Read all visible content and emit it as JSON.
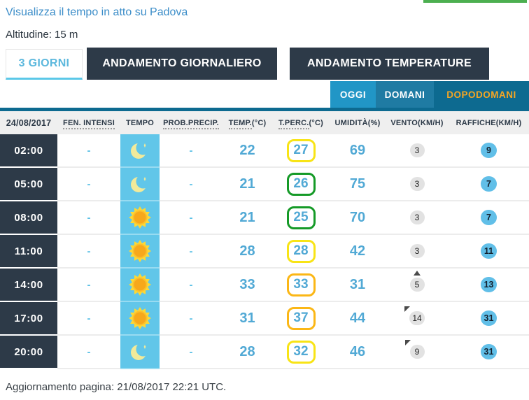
{
  "page": {
    "link_label": "Visualizza il tempo in atto su Padova",
    "altitude_label": "Altitudine: 15 m",
    "update_label": "Aggiornamento pagina: 21/08/2017 22:21 UTC."
  },
  "main_tabs": [
    {
      "label": "3 GIORNI",
      "active": true
    },
    {
      "label": "ANDAMENTO GIORNALIERO",
      "active": false
    },
    {
      "label": "ANDAMENTO TEMPERATURE",
      "active": false
    }
  ],
  "day_tabs": [
    {
      "label": "OGGI",
      "bg": "#2196c6",
      "selected": false
    },
    {
      "label": "DOMANI",
      "bg": "#1f7ba3",
      "selected": false
    },
    {
      "label": "DOPODOMANI",
      "bg": "#0d6a90",
      "selected": true
    }
  ],
  "colors": {
    "accent_teal": "#0d6a90",
    "navy": "#2d3a48",
    "tempo_bg": "#61c6e9",
    "value_blue": "#51a9d5",
    "selected_day_text": "#f5a623",
    "green_bar": "#4caf50",
    "wind_circle_bg": "#e2e2e2",
    "gust_circle_bg": "#61bfe8",
    "badge": {
      "yellow": "#f8e416",
      "green": "#159a27",
      "amber": "#fbb716"
    }
  },
  "icons": {
    "moon": "moon-icon",
    "sun": "sun-icon"
  },
  "table": {
    "headers": [
      {
        "text": "24/08/2017",
        "suffix": "",
        "dotted": false
      },
      {
        "text": "FEN. INTENSI",
        "suffix": "",
        "dotted": true
      },
      {
        "text": "TEMPO",
        "suffix": "",
        "dotted": false
      },
      {
        "text": "PROB.PRECIP.",
        "suffix": "",
        "dotted": true
      },
      {
        "text": "TEMP.",
        "suffix": "(°C)",
        "dotted": true
      },
      {
        "text": "T.PERC.",
        "suffix": "(°C)",
        "dotted": true
      },
      {
        "text": "UMIDITÀ(%)",
        "suffix": "",
        "dotted": false
      },
      {
        "text": "VENTO(KM/H)",
        "suffix": "",
        "dotted": false
      },
      {
        "text": "RAFFICHE(KM/H)",
        "suffix": "",
        "dotted": false
      }
    ],
    "rows": [
      {
        "time": "02:00",
        "fen": "-",
        "weather": "moon",
        "prob": "-",
        "temp": "22",
        "tperc": "27",
        "tperc_color": "yellow",
        "humidity": "69",
        "wind": "3",
        "wind_dir": null,
        "gust": "9"
      },
      {
        "time": "05:00",
        "fen": "-",
        "weather": "moon",
        "prob": "-",
        "temp": "21",
        "tperc": "26",
        "tperc_color": "green",
        "humidity": "75",
        "wind": "3",
        "wind_dir": null,
        "gust": "7"
      },
      {
        "time": "08:00",
        "fen": "-",
        "weather": "sun",
        "prob": "-",
        "temp": "21",
        "tperc": "25",
        "tperc_color": "green",
        "humidity": "70",
        "wind": "3",
        "wind_dir": null,
        "gust": "7"
      },
      {
        "time": "11:00",
        "fen": "-",
        "weather": "sun",
        "prob": "-",
        "temp": "28",
        "tperc": "28",
        "tperc_color": "yellow",
        "humidity": "42",
        "wind": "3",
        "wind_dir": null,
        "gust": "11"
      },
      {
        "time": "14:00",
        "fen": "-",
        "weather": "sun",
        "prob": "-",
        "temp": "33",
        "tperc": "33",
        "tperc_color": "amber",
        "humidity": "31",
        "wind": "5",
        "wind_dir": "up",
        "gust": "13"
      },
      {
        "time": "17:00",
        "fen": "-",
        "weather": "sun",
        "prob": "-",
        "temp": "31",
        "tperc": "37",
        "tperc_color": "amber",
        "humidity": "44",
        "wind": "14",
        "wind_dir": "up-left",
        "gust": "31"
      },
      {
        "time": "20:00",
        "fen": "-",
        "weather": "moon",
        "prob": "-",
        "temp": "28",
        "tperc": "32",
        "tperc_color": "yellow",
        "humidity": "46",
        "wind": "9",
        "wind_dir": "up-left",
        "gust": "31"
      }
    ]
  }
}
